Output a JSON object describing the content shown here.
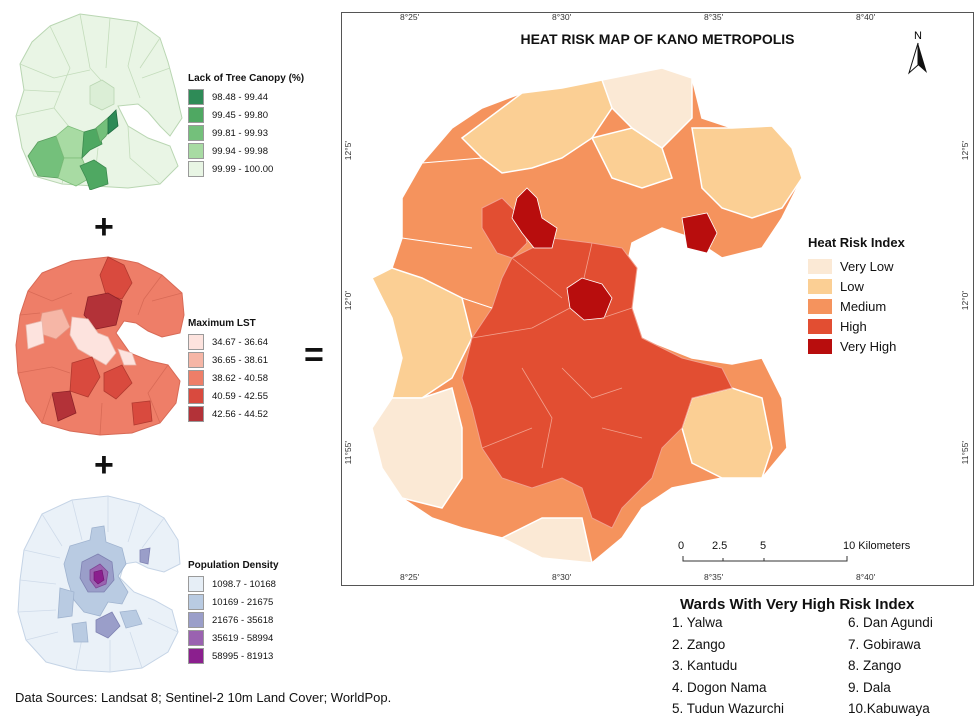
{
  "canopy_legend": {
    "title": "Lack of Tree Canopy (%)",
    "items": [
      {
        "label": "98.48 - 99.44",
        "color": "#2e8b57"
      },
      {
        "label": "99.45 - 99.80",
        "color": "#4fa862"
      },
      {
        "label": "99.81 - 99.93",
        "color": "#74c07b"
      },
      {
        "label": "99.94 - 99.98",
        "color": "#a8dba3"
      },
      {
        "label": "99.99 - 100.00",
        "color": "#e8f5e4"
      }
    ]
  },
  "lst_legend": {
    "title": "Maximum LST",
    "items": [
      {
        "label": "34.67 - 36.64",
        "color": "#fde3de"
      },
      {
        "label": "36.65 - 38.61",
        "color": "#f6b6a6"
      },
      {
        "label": "38.62 - 40.58",
        "color": "#ee7e68"
      },
      {
        "label": "40.59 - 42.55",
        "color": "#d94a3e"
      },
      {
        "label": "42.56 - 44.52",
        "color": "#b33238"
      }
    ]
  },
  "density_legend": {
    "title": "Population Density",
    "items": [
      {
        "label": "1098.7 - 10168",
        "color": "#e6eef6"
      },
      {
        "label": "10169 - 21675",
        "color": "#b9cbe2"
      },
      {
        "label": "21676 - 35618",
        "color": "#9a9ec9"
      },
      {
        "label": "35619 - 58994",
        "color": "#9a62b0"
      },
      {
        "label": "58995 - 81913",
        "color": "#8b1f8e"
      }
    ]
  },
  "operators": {
    "plus": "+",
    "equals": "="
  },
  "main_map": {
    "title": "HEAT RISK MAP OF KANO METROPOLIS",
    "north_label": "N",
    "top_ticks": [
      "8°25'",
      "8°30'",
      "8°35'",
      "8°40'"
    ],
    "bottom_ticks": [
      "8°25'",
      "8°30'",
      "8°35'",
      "8°40'"
    ],
    "left_ticks": [
      "12°5'",
      "12°0'",
      "11°55'"
    ],
    "right_ticks": [
      "12°5'",
      "12°0'",
      "11°55'"
    ],
    "scale_labels": [
      "0",
      "2.5",
      "5",
      "10 Kilometers"
    ],
    "legend": {
      "title": "Heat Risk Index",
      "items": [
        {
          "label": "Very Low",
          "color": "#fbe9d5"
        },
        {
          "label": "Low",
          "color": "#fbcf94"
        },
        {
          "label": "Medium",
          "color": "#f5935d"
        },
        {
          "label": "High",
          "color": "#e24e32"
        },
        {
          "label": "Very High",
          "color": "#b80d0d"
        }
      ]
    }
  },
  "wards": {
    "title": "Wards With Very High Risk Index",
    "col1": [
      "1. Yalwa",
      "2. Zango",
      "3. Kantudu",
      "4. Dogon Nama",
      "5. Tudun Wazurchi"
    ],
    "col2": [
      "6. Dan Agundi",
      "7. Gobirawa",
      "8. Zango",
      "9. Dala",
      "10.Kabuwaya"
    ]
  },
  "data_sources": "Data Sources: Landsat 8; Sentinel-2 10m Land Cover; WorldPop."
}
